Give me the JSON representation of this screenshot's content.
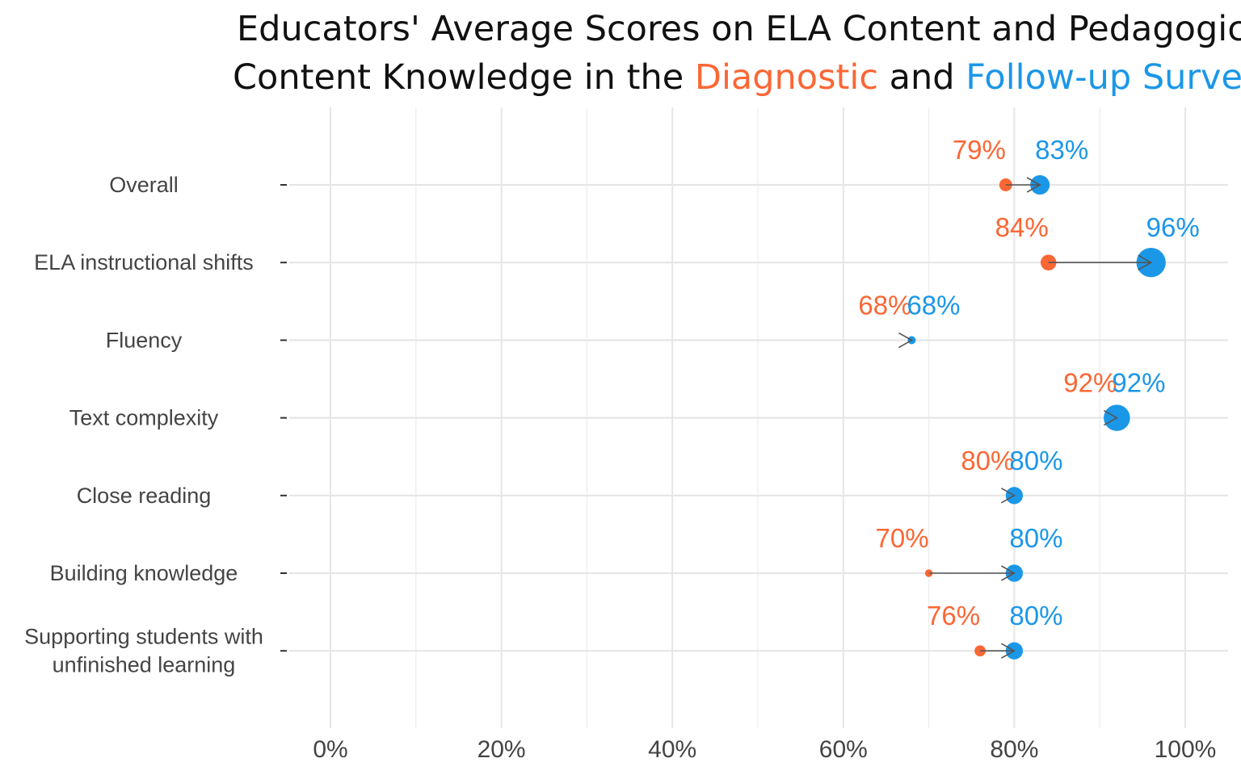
{
  "chart_data": {
    "type": "dumbbell",
    "title": {
      "line1": "Educators' Average Scores on ELA Content and Pedagogical",
      "line2_prefix": "Content Knowledge in the ",
      "diagnostic_word": "Diagnostic",
      "line2_middle": " and ",
      "followup_word": "Follow-up Survey"
    },
    "xlabel": "",
    "ylabel": "",
    "xlim": [
      0,
      100
    ],
    "x_ticks": [
      "0%",
      "20%",
      "40%",
      "60%",
      "80%",
      "100%"
    ],
    "grid": true,
    "series_colors": {
      "diagnostic": "#fa6735",
      "followup": "#1b97e8"
    },
    "categories": [
      {
        "label_lines": [
          "Overall"
        ],
        "diagnostic": 79,
        "followup": 83,
        "diagnostic_label": "79%",
        "followup_label": "83%"
      },
      {
        "label_lines": [
          "ELA instructional shifts"
        ],
        "diagnostic": 84,
        "followup": 96,
        "diagnostic_label": "84%",
        "followup_label": "96%"
      },
      {
        "label_lines": [
          "Fluency"
        ],
        "diagnostic": 68,
        "followup": 68,
        "diagnostic_label": "68%",
        "followup_label": "68%"
      },
      {
        "label_lines": [
          "Text complexity"
        ],
        "diagnostic": 92,
        "followup": 92,
        "diagnostic_label": "92%",
        "followup_label": "92%"
      },
      {
        "label_lines": [
          "Close reading"
        ],
        "diagnostic": 80,
        "followup": 80,
        "diagnostic_label": "80%",
        "followup_label": "80%"
      },
      {
        "label_lines": [
          "Building knowledge"
        ],
        "diagnostic": 70,
        "followup": 80,
        "diagnostic_label": "70%",
        "followup_label": "80%"
      },
      {
        "label_lines": [
          "Supporting students with",
          "unfinished learning"
        ],
        "diagnostic": 76,
        "followup": 80,
        "diagnostic_label": "76%",
        "followup_label": "80%"
      }
    ]
  }
}
